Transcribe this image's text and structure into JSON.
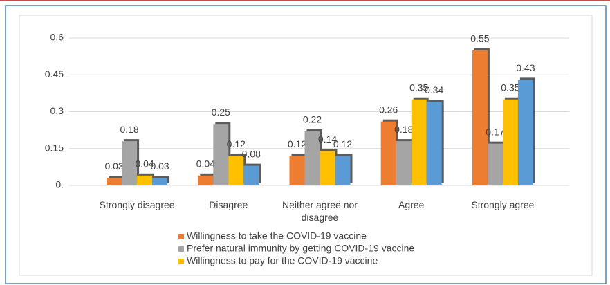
{
  "chart_data": {
    "type": "bar",
    "categories": [
      "Strongly disagree",
      "Disagree",
      "Neither agree nor disagree",
      "Agree",
      "Strongly agree"
    ],
    "series": [
      {
        "name": "Willingness to take the COVID-19 vaccine",
        "color": "#ed7d31",
        "values": [
          0.03,
          0.04,
          0.12,
          0.26,
          0.55
        ]
      },
      {
        "name": "Prefer natural immunity by getting COVID-19 vaccine",
        "color": "#a5a5a5",
        "values": [
          0.18,
          0.25,
          0.22,
          0.18,
          0.17
        ]
      },
      {
        "name": "Willingness to pay for the COVID-19 vaccine",
        "color": "#ffc000",
        "values": [
          0.04,
          0.12,
          0.14,
          0.35,
          0.35
        ]
      },
      {
        "color": "#5b9bd5",
        "values": [
          0.03,
          0.08,
          0.12,
          0.34,
          0.43
        ]
      }
    ],
    "ylim": [
      0,
      0.6
    ],
    "yticks": [
      {
        "value": 0,
        "label": "0."
      },
      0.15,
      0.3,
      0.45,
      0.6
    ],
    "grid": true
  }
}
